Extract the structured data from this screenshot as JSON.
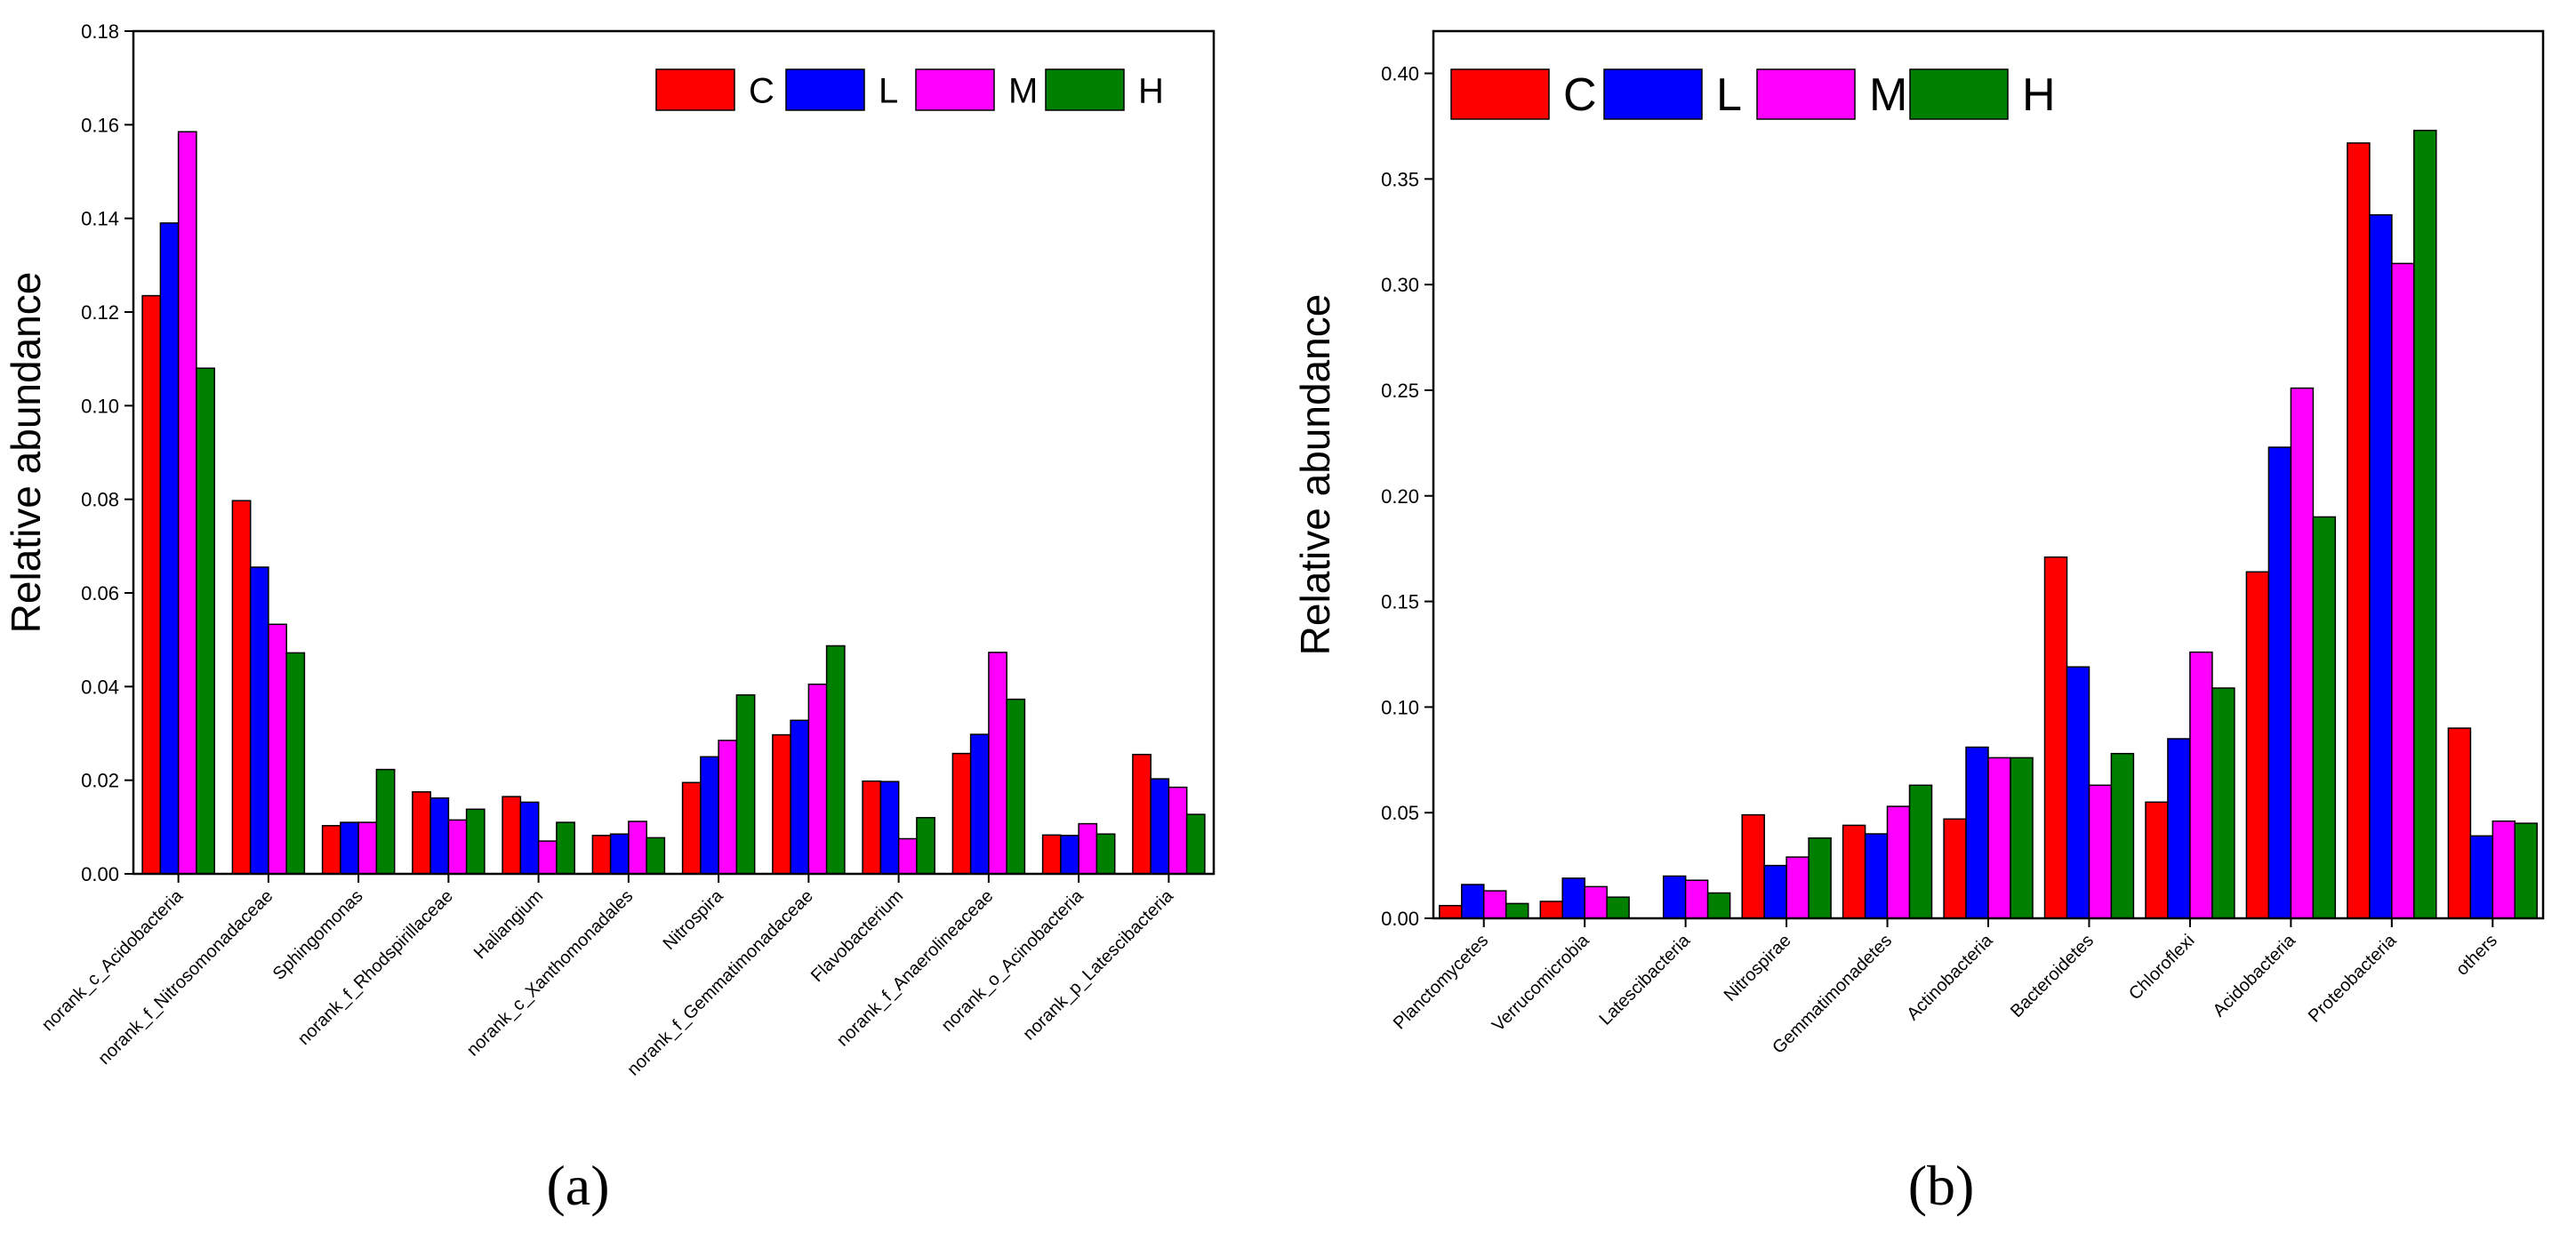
{
  "colors": {
    "C": "#ff0000",
    "L": "#0000ff",
    "M": "#ff00ff",
    "H": "#008000"
  },
  "chart_data": [
    {
      "type": "bar",
      "panel_label": "(a)",
      "ylabel": "Relative abundance",
      "xlabel": "",
      "ylim": [
        0,
        0.18
      ],
      "yticks": [
        "0.00",
        "0.02",
        "0.04",
        "0.06",
        "0.08",
        "0.10",
        "0.12",
        "0.14",
        "0.16",
        "0.18"
      ],
      "legend": [
        "C",
        "L",
        "M",
        "H"
      ],
      "categories": [
        "norank_c_Acidobacteria",
        "norank_f_Nitrosomonadaceae",
        "Sphingomonas",
        "norank_f_Rhodspirillaceae",
        "Haliangium",
        "norank_c_Xanthomonadales",
        "Nitrospira",
        "norank_f_Gemmatimonadaceae",
        "Flavobacterium",
        "norank_f_Anaerolineaceae",
        "norank_o_Acinobacteria",
        "norank_p_Latescibacteria"
      ],
      "series": [
        {
          "name": "C",
          "values": [
            0.1235,
            0.0797,
            0.0103,
            0.0175,
            0.0165,
            0.0082,
            0.0195,
            0.0297,
            0.0198,
            0.0257,
            0.0083,
            0.0255
          ]
        },
        {
          "name": "L",
          "values": [
            0.139,
            0.0655,
            0.011,
            0.0162,
            0.0153,
            0.0085,
            0.025,
            0.0328,
            0.0197,
            0.0298,
            0.0082,
            0.0203
          ]
        },
        {
          "name": "M",
          "values": [
            0.1585,
            0.0533,
            0.011,
            0.0115,
            0.007,
            0.0112,
            0.0285,
            0.0405,
            0.0075,
            0.0473,
            0.0107,
            0.0185
          ]
        },
        {
          "name": "H",
          "values": [
            0.108,
            0.0472,
            0.0223,
            0.0138,
            0.011,
            0.0077,
            0.0382,
            0.0487,
            0.012,
            0.0373,
            0.0085,
            0.0127
          ]
        }
      ]
    },
    {
      "type": "bar",
      "panel_label": "(b)",
      "ylabel": "Relative abundance",
      "xlabel": "",
      "ylim": [
        0,
        0.42
      ],
      "yticks": [
        "0.00",
        "0.05",
        "0.10",
        "0.15",
        "0.20",
        "0.25",
        "0.30",
        "0.35",
        "0.40"
      ],
      "legend": [
        "C",
        "L",
        "M",
        "H"
      ],
      "categories": [
        "Planctomycetes",
        "Verrucomicrobia",
        "Latescibacteria",
        "Nitrospirae",
        "Gemmatimonadetes",
        "Actinobacteria",
        "Bacteroidetes",
        "Chloroflexi",
        "Acidobacteria",
        "Proteobacteria",
        "others"
      ],
      "series": [
        {
          "name": "C",
          "values": [
            0.006,
            0.008,
            0.0,
            0.049,
            0.044,
            0.047,
            0.171,
            0.055,
            0.164,
            0.367,
            0.09
          ]
        },
        {
          "name": "L",
          "values": [
            0.016,
            0.019,
            0.02,
            0.025,
            0.04,
            0.081,
            0.119,
            0.085,
            0.223,
            0.333,
            0.039
          ]
        },
        {
          "name": "M",
          "values": [
            0.013,
            0.015,
            0.018,
            0.029,
            0.053,
            0.076,
            0.063,
            0.126,
            0.251,
            0.31,
            0.046
          ]
        },
        {
          "name": "H",
          "values": [
            0.007,
            0.01,
            0.012,
            0.038,
            0.063,
            0.076,
            0.078,
            0.109,
            0.19,
            0.373,
            0.045
          ]
        }
      ]
    }
  ]
}
